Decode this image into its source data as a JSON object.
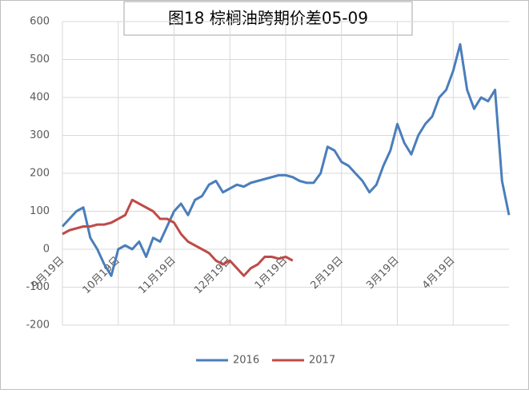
{
  "chart_data": {
    "type": "line",
    "title": "图18 棕榈油跨期价差05-09",
    "categories": [
      "9月19日",
      null,
      null,
      null,
      null,
      null,
      null,
      null,
      "10月19日",
      null,
      null,
      null,
      null,
      null,
      null,
      null,
      "11月19日",
      null,
      null,
      null,
      null,
      null,
      null,
      null,
      "12月19日",
      null,
      null,
      null,
      null,
      null,
      null,
      null,
      "1月19日",
      null,
      null,
      null,
      null,
      null,
      null,
      null,
      "2月19日",
      null,
      null,
      null,
      null,
      null,
      null,
      null,
      "3月19日",
      null,
      null,
      null,
      null,
      null,
      null,
      null,
      "4月19日",
      null,
      null,
      null,
      null,
      null,
      null,
      null,
      null
    ],
    "series": [
      {
        "name": "2016",
        "color": "#4a7ebb",
        "values": [
          60,
          80,
          100,
          110,
          30,
          0,
          -40,
          -70,
          0,
          10,
          0,
          20,
          -20,
          30,
          20,
          60,
          100,
          120,
          90,
          130,
          140,
          170,
          180,
          150,
          160,
          170,
          165,
          175,
          180,
          185,
          190,
          195,
          195,
          190,
          180,
          175,
          175,
          200,
          270,
          260,
          230,
          220,
          200,
          180,
          150,
          170,
          220,
          260,
          330,
          280,
          250,
          300,
          330,
          350,
          400,
          420,
          470,
          540,
          420,
          370,
          400,
          390,
          420,
          180,
          90
        ]
      },
      {
        "name": "2017",
        "color": "#be4b48",
        "values": [
          40,
          50,
          55,
          60,
          60,
          65,
          65,
          70,
          80,
          90,
          130,
          120,
          110,
          100,
          80,
          80,
          70,
          40,
          20,
          10,
          0,
          -10,
          -30,
          -40,
          -30,
          -50,
          -70,
          -50,
          -40,
          -20,
          -20,
          -25,
          -20,
          -30,
          null,
          null,
          null,
          null,
          null,
          null,
          null,
          null,
          null,
          null,
          null,
          null,
          null,
          null,
          null,
          null,
          null,
          null,
          null,
          null,
          null,
          null,
          null,
          null,
          null,
          null,
          null,
          null,
          null,
          null,
          null
        ]
      }
    ],
    "ylim": [
      -200,
      600
    ],
    "yticks": [
      -200,
      -100,
      0,
      100,
      200,
      300,
      400,
      500,
      600
    ],
    "grid": true,
    "legend": "bottom"
  }
}
